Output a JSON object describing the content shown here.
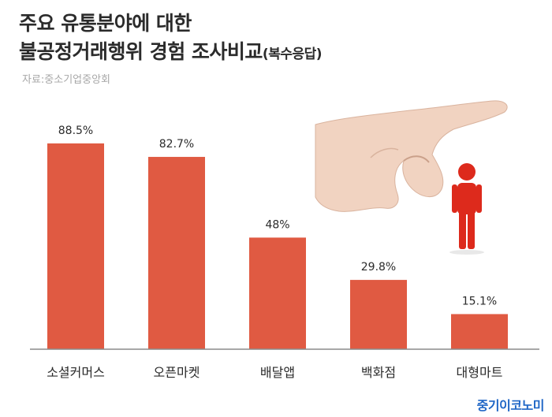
{
  "title_line1": "주요 유통분야에 대한",
  "title_line2_main": "불공정거래행위 경험 조사비교",
  "title_line2_note": "(복수응답)",
  "source": "자료:중소기업중앙회",
  "brand": "중기이코노미",
  "colors": {
    "bar": "#e05a42",
    "axis": "#8c8c8c",
    "figure": "#dd2a1c",
    "skin": "#f1d3c1"
  },
  "illustration": {
    "hand": "hand-icon",
    "person": "person-icon"
  },
  "chart_data": {
    "type": "bar",
    "categories": [
      "소셜커머스",
      "오픈마켓",
      "배달앱",
      "백화점",
      "대형마트"
    ],
    "values": [
      88.5,
      82.7,
      48,
      29.8,
      15.1
    ],
    "value_labels": [
      "88.5%",
      "82.7%",
      "48%",
      "29.8%",
      "15.1%"
    ],
    "ylim": [
      0,
      100
    ],
    "grid": false,
    "legend": "none"
  }
}
